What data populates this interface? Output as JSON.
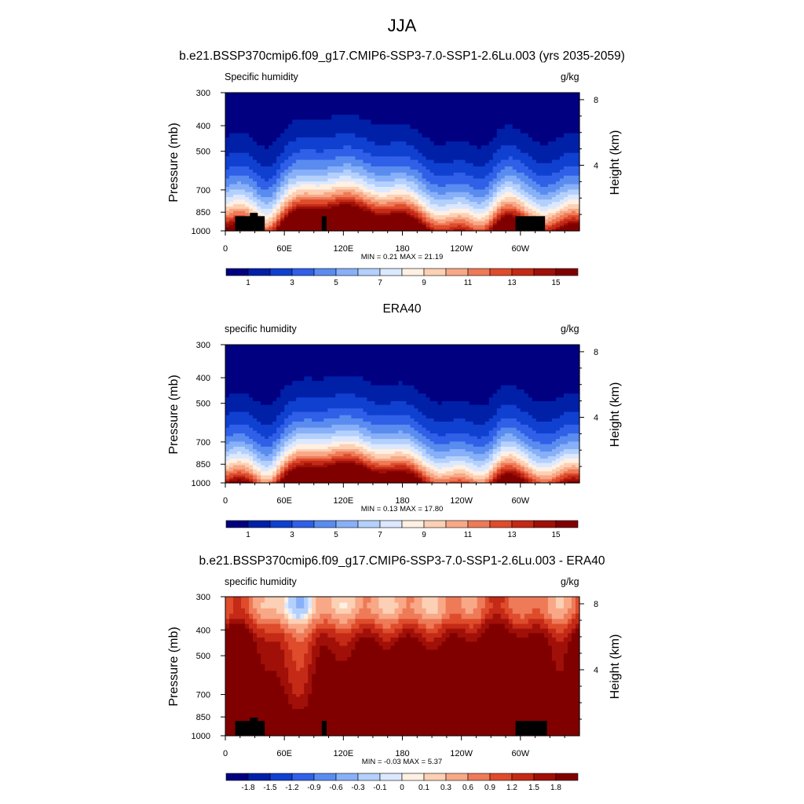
{
  "figure": {
    "season": "JJA",
    "case_title": "b.e21.BSSP370cmip6.f09_g17.CMIP6-SSP3-7.0-SSP1-2.6Lu.003 (yrs 2035-2059)",
    "obs_title": "ERA40",
    "diff_title": "b.e21.BSSP370cmip6.f09_g17.CMIP6-SSP3-7.0-SSP1-2.6Lu.003 - ERA40"
  },
  "colors": {
    "seq_levels": [
      "#000080",
      "#0020a8",
      "#1040d0",
      "#3060e8",
      "#5a8cf0",
      "#88b0f8",
      "#b4d0fc",
      "#dce8ff",
      "#fff0e2",
      "#fcd0b4",
      "#f8a886",
      "#ee7a58",
      "#de4c2c",
      "#c42a16",
      "#a01008",
      "#800000"
    ],
    "div_levels": [
      "#000080",
      "#0020a8",
      "#1040d0",
      "#3060e8",
      "#5a8cf0",
      "#88b0f8",
      "#b4d0fc",
      "#dce8ff",
      "#fff0e2",
      "#fcd0b4",
      "#f8a886",
      "#ee7a58",
      "#de4c2c",
      "#c42a16",
      "#a01008",
      "#800000"
    ]
  },
  "chart_data": [
    {
      "type": "heatmap",
      "panel": "model",
      "title": "b.e21.BSSP370cmip6.f09_g17.CMIP6-SSP3-7.0-SSP1-2.6Lu.003 (yrs 2035-2059)",
      "variable": "Specific humidity",
      "units": "g/kg",
      "xlabel": "",
      "ylabel": "Pressure (mb)",
      "y2label": "Height (km)",
      "x_ticks": [
        "0",
        "60E",
        "120E",
        "180",
        "120W",
        "60W"
      ],
      "x_tick_values": [
        0,
        60,
        120,
        180,
        240,
        300
      ],
      "xlim": [
        0,
        360
      ],
      "y_ticks": [
        "300",
        "400",
        "500",
        "700",
        "850",
        "1000"
      ],
      "y_tick_values": [
        300,
        400,
        500,
        700,
        850,
        1000
      ],
      "ylim": [
        1000,
        300
      ],
      "y2_ticks": [
        "8",
        "4"
      ],
      "y2_tick_values": [
        8,
        4
      ],
      "stats": "MIN =   0.21  MAX =  21.19",
      "min": 0.21,
      "max": 21.19,
      "colorbar_labels": [
        "1",
        "3",
        "5",
        "7",
        "9",
        "11",
        "13",
        "15"
      ],
      "n_levels": 16,
      "topography": true
    },
    {
      "type": "heatmap",
      "panel": "obs",
      "title": "ERA40",
      "variable": "specific humidity",
      "units": "g/kg",
      "xlabel": "",
      "ylabel": "Pressure (mb)",
      "y2label": "Height (km)",
      "x_ticks": [
        "0",
        "60E",
        "120E",
        "180",
        "120W",
        "60W"
      ],
      "x_tick_values": [
        0,
        60,
        120,
        180,
        240,
        300
      ],
      "xlim": [
        0,
        360
      ],
      "y_ticks": [
        "300",
        "400",
        "500",
        "700",
        "850",
        "1000"
      ],
      "y_tick_values": [
        300,
        400,
        500,
        700,
        850,
        1000
      ],
      "ylim": [
        1000,
        300
      ],
      "y2_ticks": [
        "8",
        "4"
      ],
      "y2_tick_values": [
        8,
        4
      ],
      "stats": "MIN =   0.13  MAX =  17.80",
      "min": 0.13,
      "max": 17.8,
      "colorbar_labels": [
        "1",
        "3",
        "5",
        "7",
        "9",
        "11",
        "13",
        "15"
      ],
      "n_levels": 16,
      "topography": false
    },
    {
      "type": "heatmap",
      "panel": "diff",
      "title": "b.e21.BSSP370cmip6.f09_g17.CMIP6-SSP3-7.0-SSP1-2.6Lu.003 - ERA40",
      "variable": "specific humidity",
      "units": "g/kg",
      "xlabel": "",
      "ylabel": "Pressure (mb)",
      "y2label": "Height (km)",
      "x_ticks": [
        "0",
        "60E",
        "120E",
        "180",
        "120W",
        "60W"
      ],
      "x_tick_values": [
        0,
        60,
        120,
        180,
        240,
        300
      ],
      "xlim": [
        0,
        360
      ],
      "y_ticks": [
        "300",
        "400",
        "500",
        "700",
        "850",
        "1000"
      ],
      "y_tick_values": [
        300,
        400,
        500,
        700,
        850,
        1000
      ],
      "ylim": [
        1000,
        300
      ],
      "y2_ticks": [
        "8",
        "4"
      ],
      "y2_tick_values": [
        8,
        4
      ],
      "stats": "MIN =  -0.03  MAX =   5.37",
      "min": -0.03,
      "max": 5.37,
      "colorbar_labels": [
        "-1.8",
        "-1.5",
        "-1.2",
        "-0.9",
        "-0.6",
        "-0.3",
        "-0.1",
        "0",
        "0.1",
        "0.3",
        "0.6",
        "0.9",
        "1.2",
        "1.5",
        "1.8"
      ],
      "n_levels": 16,
      "topography": true
    }
  ]
}
